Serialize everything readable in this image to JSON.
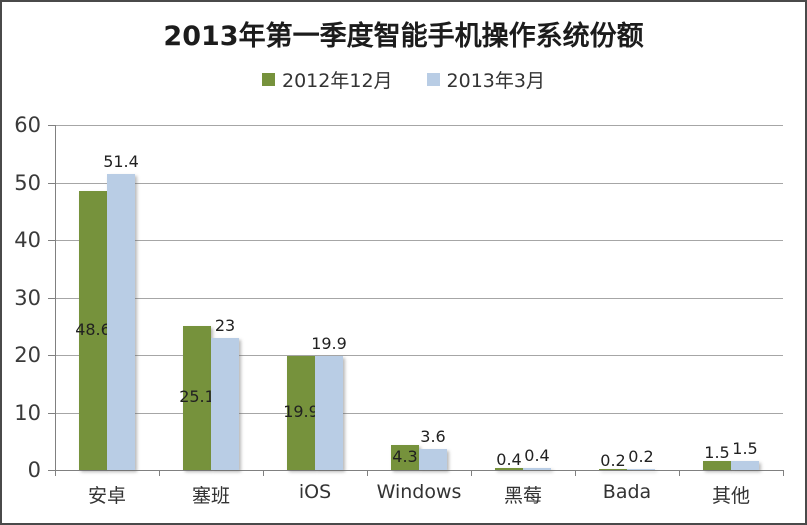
{
  "window": {
    "background": "#ffffff",
    "border_color": "#4a4a4a"
  },
  "chart_data": {
    "type": "bar",
    "title": "2013年第一季度智能手机操作系统份额",
    "categories": [
      "安卓",
      "塞班",
      "iOS",
      "Windows",
      "黑莓",
      "Bada",
      "其他"
    ],
    "series": [
      {
        "name": "2012年12月",
        "color": "#76923C",
        "values": [
          48.6,
          25.1,
          19.9,
          4.3,
          0.4,
          0.2,
          1.5
        ]
      },
      {
        "name": "2013年3月",
        "color": "#B9CDE5",
        "values": [
          51.4,
          23,
          19.9,
          3.6,
          0.4,
          0.2,
          1.5
        ]
      }
    ],
    "ylim": [
      0,
      60
    ],
    "y_ticks": [
      0,
      10,
      20,
      30,
      40,
      50,
      60
    ],
    "grid": true,
    "legend_position": "top-center",
    "data_labels": true,
    "colors": {
      "gridline": "#a6a6a6",
      "axis": "#808080",
      "title_text": "#1c1c1c",
      "label_text": "#212121",
      "tick_text": "#3a3a3a"
    }
  }
}
